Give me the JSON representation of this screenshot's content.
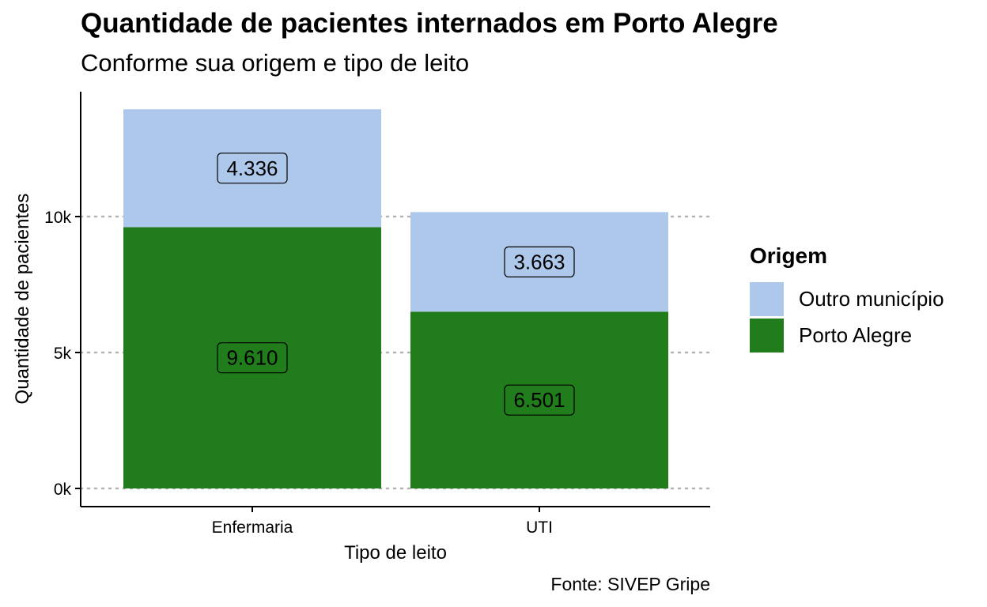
{
  "chart_data": {
    "type": "bar",
    "stacked": true,
    "title": "Quantidade de pacientes internados em Porto Alegre",
    "subtitle": "Conforme sua origem e tipo de leito",
    "xlabel": "Tipo de leito",
    "ylabel": "Quantidade de pacientes",
    "caption": "Fonte: SIVEP Gripe",
    "categories": [
      "Enfermaria",
      "UTI"
    ],
    "series": [
      {
        "name": "Porto Alegre",
        "values": [
          9610,
          6501
        ],
        "labels": [
          "9.610",
          "6.501"
        ],
        "color": "#217c1b"
      },
      {
        "name": "Outro município",
        "values": [
          4336,
          3663
        ],
        "labels": [
          "4.336",
          "3.663"
        ],
        "color": "#aec8eb"
      }
    ],
    "ylim": [
      0,
      14000
    ],
    "yticks": [
      0,
      5000,
      10000
    ],
    "ytick_labels": [
      "0k",
      "5k",
      "10k"
    ],
    "grid": "horizontal dotted",
    "legend": {
      "title": "Origem",
      "position": "right",
      "entries": [
        "Outro município",
        "Porto Alegre"
      ],
      "colors": [
        "#aec8eb",
        "#217c1b"
      ]
    }
  }
}
